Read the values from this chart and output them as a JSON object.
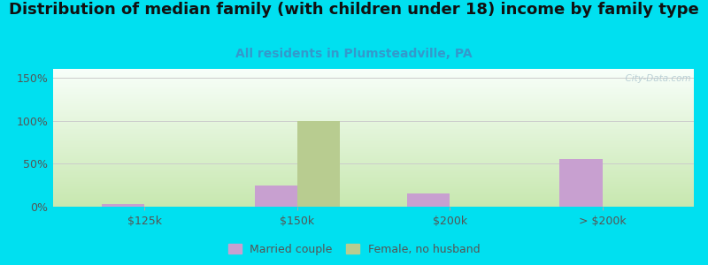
{
  "title": "Distribution of median family (with children under 18) income by family type",
  "subtitle": "All residents in Plumsteadville, PA",
  "categories": [
    "$125k",
    "$150k",
    "$200k",
    "> $200k"
  ],
  "married_couple": [
    3,
    25,
    15,
    55
  ],
  "female_no_husband": [
    0,
    99,
    0,
    0
  ],
  "bar_width": 0.28,
  "married_color": "#c8a0d0",
  "female_color": "#b8cc90",
  "ylim": [
    0,
    160
  ],
  "yticks": [
    0,
    50,
    100,
    150
  ],
  "ytick_labels": [
    "0%",
    "50%",
    "100%",
    "150%"
  ],
  "background_outer": "#00e0f0",
  "bg_top_color": "#f8fffa",
  "bg_bottom_color": "#c8e8b0",
  "grid_color": "#cccccc",
  "title_fontsize": 13,
  "subtitle_fontsize": 10,
  "subtitle_color": "#3399cc",
  "tick_label_color": "#555555",
  "watermark": "  City-Data.com",
  "legend_married": "Married couple",
  "legend_female": "Female, no husband"
}
